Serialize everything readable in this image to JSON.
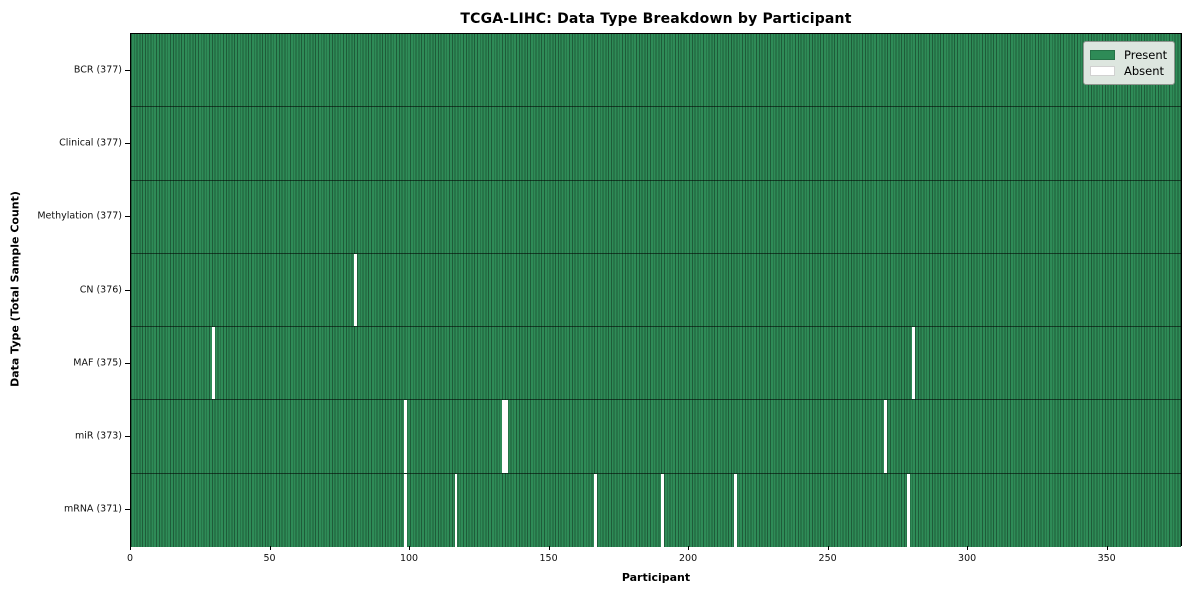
{
  "chart_data": {
    "type": "heatmap",
    "title": "TCGA-LIHC: Data Type Breakdown by Participant",
    "xlabel": "Participant",
    "ylabel": "Data Type (Total Sample Count)",
    "n_participants": 377,
    "xlim": [
      0,
      377
    ],
    "x_ticks": [
      0,
      50,
      100,
      150,
      200,
      250,
      300,
      350
    ],
    "grid": false,
    "legend": {
      "position": "upper right",
      "entries": [
        {
          "label": "Present",
          "color": "#2e8b57"
        },
        {
          "label": "Absent",
          "color": "#ffffff"
        }
      ]
    },
    "colors": {
      "present": "#2e8b57",
      "absent": "#ffffff",
      "cell_edge": "rgba(0,0,0,0.34)",
      "row_divider": "rgba(0,0,0,0.55)"
    },
    "rows": [
      {
        "label": "BCR (377)",
        "data_type": "BCR",
        "present_count": 377,
        "absent_participants": []
      },
      {
        "label": "Clinical (377)",
        "data_type": "Clinical",
        "present_count": 377,
        "absent_participants": []
      },
      {
        "label": "Methylation (377)",
        "data_type": "Methylation",
        "present_count": 377,
        "absent_participants": []
      },
      {
        "label": "CN (376)",
        "data_type": "CN",
        "present_count": 376,
        "absent_participants": [
          80
        ]
      },
      {
        "label": "MAF (375)",
        "data_type": "MAF",
        "present_count": 375,
        "absent_participants": [
          29,
          280
        ]
      },
      {
        "label": "miR (373)",
        "data_type": "miR",
        "present_count": 373,
        "absent_participants": [
          98,
          133,
          134,
          270
        ]
      },
      {
        "label": "mRNA (371)",
        "data_type": "mRNA",
        "present_count": 371,
        "absent_participants": [
          98,
          116,
          166,
          190,
          216,
          278
        ]
      }
    ]
  }
}
